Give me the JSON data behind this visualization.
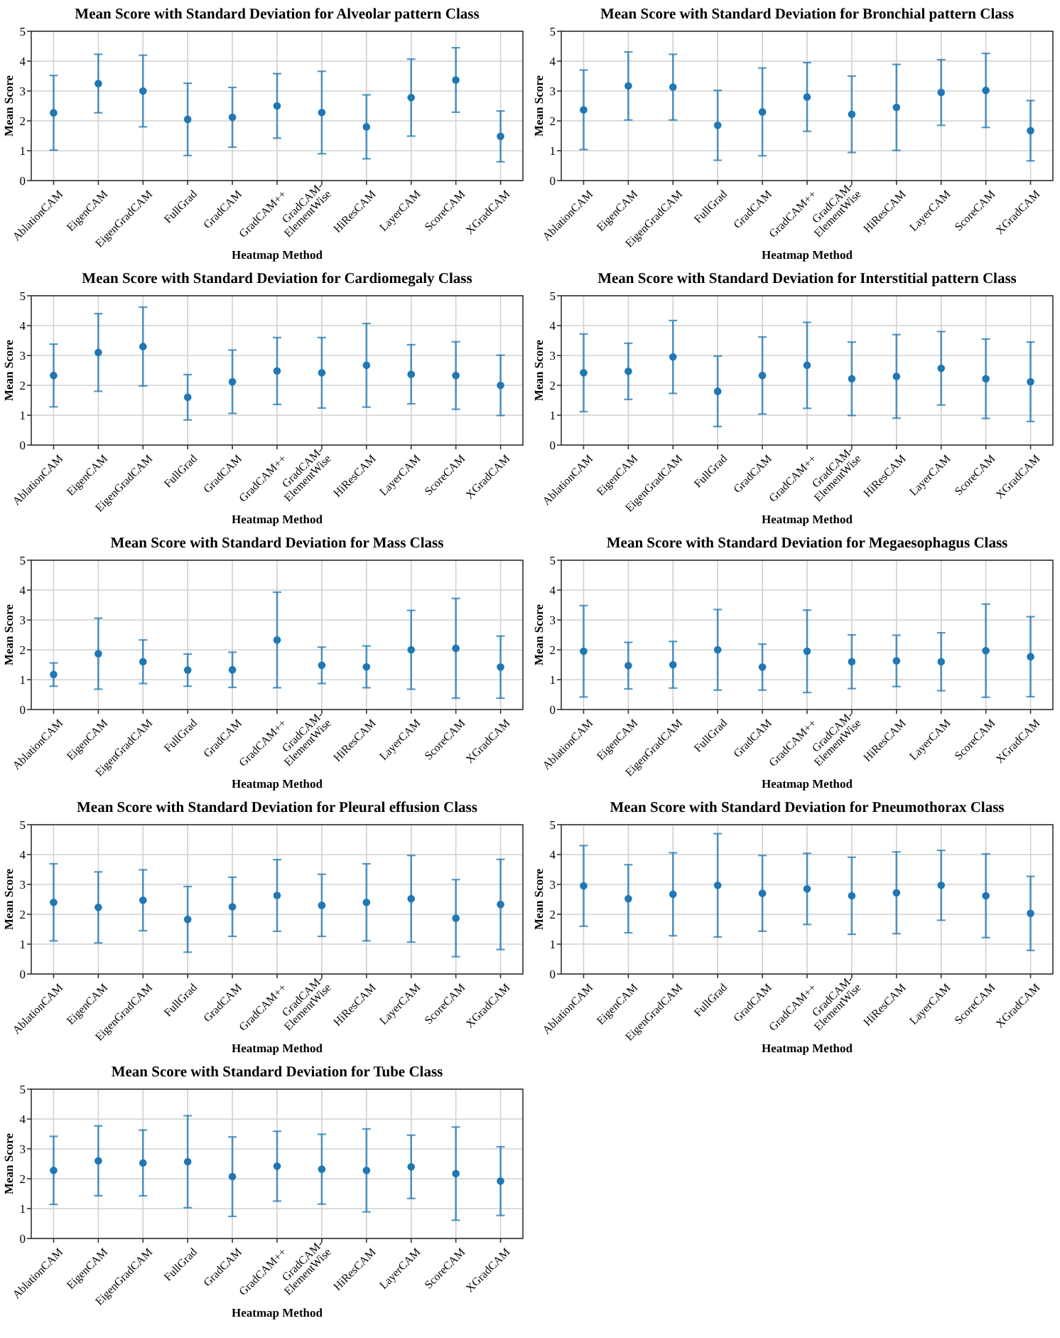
{
  "chart_data": [
    {
      "type": "scatter",
      "title": "Mean Score with Standard Deviation for Alveolar pattern Class",
      "xlabel": "Heatmap Method",
      "ylabel": "Mean Score",
      "categories": [
        "AblationCAM",
        "EigenCAM",
        "EigenGradCAM",
        "FullGrad",
        "GradCAM",
        "GradCAM++",
        "GradCAM-ElementWise",
        "HiResCAM",
        "LayerCAM",
        "ScoreCAM",
        "XGradCAM"
      ],
      "ylim": [
        0,
        5
      ],
      "yticks": [
        0,
        1,
        2,
        3,
        4,
        5
      ],
      "grid": true,
      "marker": "circle",
      "series": [
        {
          "color": "#1f77b4",
          "values": [
            2.27,
            3.25,
            3.0,
            2.05,
            2.12,
            2.5,
            2.28,
            1.8,
            2.78,
            3.37,
            1.48
          ],
          "errors": [
            1.25,
            0.98,
            1.2,
            1.21,
            1.0,
            1.08,
            1.38,
            1.07,
            1.29,
            1.08,
            0.85
          ]
        }
      ]
    },
    {
      "type": "scatter",
      "title": "Mean Score with Standard Deviation for Bronchial pattern Class",
      "xlabel": "Heatmap Method",
      "ylabel": "Mean Score",
      "categories": [
        "AblationCAM",
        "EigenCAM",
        "EigenGradCAM",
        "FullGrad",
        "GradCAM",
        "GradCAM++",
        "GradCAM-ElementWise",
        "HiResCAM",
        "LayerCAM",
        "ScoreCAM",
        "XGradCAM"
      ],
      "ylim": [
        0,
        5
      ],
      "yticks": [
        0,
        1,
        2,
        3,
        4,
        5
      ],
      "grid": true,
      "marker": "circle",
      "series": [
        {
          "color": "#1f77b4",
          "values": [
            2.37,
            3.17,
            3.13,
            1.85,
            2.3,
            2.8,
            2.22,
            2.45,
            2.95,
            3.02,
            1.67
          ],
          "errors": [
            1.33,
            1.14,
            1.1,
            1.17,
            1.47,
            1.15,
            1.28,
            1.44,
            1.1,
            1.24,
            1.01
          ]
        }
      ]
    },
    {
      "type": "scatter",
      "title": "Mean Score with Standard Deviation for Cardiomegaly Class",
      "xlabel": "Heatmap Method",
      "ylabel": "Mean Score",
      "categories": [
        "AblationCAM",
        "EigenCAM",
        "EigenGradCAM",
        "FullGrad",
        "GradCAM",
        "GradCAM++",
        "GradCAM-ElementWise",
        "HiResCAM",
        "LayerCAM",
        "ScoreCAM",
        "XGradCAM"
      ],
      "ylim": [
        0,
        5
      ],
      "yticks": [
        0,
        1,
        2,
        3,
        4,
        5
      ],
      "grid": true,
      "marker": "circle",
      "series": [
        {
          "color": "#1f77b4",
          "values": [
            2.33,
            3.1,
            3.3,
            1.6,
            2.12,
            2.48,
            2.42,
            2.67,
            2.37,
            2.33,
            2.0
          ],
          "errors": [
            1.05,
            1.3,
            1.32,
            0.76,
            1.06,
            1.12,
            1.18,
            1.4,
            0.99,
            1.13,
            1.01
          ]
        }
      ]
    },
    {
      "type": "scatter",
      "title": "Mean Score with Standard Deviation for Interstitial pattern Class",
      "xlabel": "Heatmap Method",
      "ylabel": "Mean Score",
      "categories": [
        "AblationCAM",
        "EigenCAM",
        "EigenGradCAM",
        "FullGrad",
        "GradCAM",
        "GradCAM++",
        "GradCAM-ElementWise",
        "HiResCAM",
        "LayerCAM",
        "ScoreCAM",
        "XGradCAM"
      ],
      "ylim": [
        0,
        5
      ],
      "yticks": [
        0,
        1,
        2,
        3,
        4,
        5
      ],
      "grid": true,
      "marker": "circle",
      "series": [
        {
          "color": "#1f77b4",
          "values": [
            2.42,
            2.47,
            2.95,
            1.8,
            2.33,
            2.67,
            2.22,
            2.3,
            2.57,
            2.22,
            2.12
          ],
          "errors": [
            1.3,
            0.94,
            1.22,
            1.18,
            1.29,
            1.44,
            1.23,
            1.4,
            1.23,
            1.33,
            1.33
          ]
        }
      ]
    },
    {
      "type": "scatter",
      "title": "Mean Score with Standard Deviation for Mass Class",
      "xlabel": "Heatmap Method",
      "ylabel": "Mean Score",
      "categories": [
        "AblationCAM",
        "EigenCAM",
        "EigenGradCAM",
        "FullGrad",
        "GradCAM",
        "GradCAM++",
        "GradCAM-ElementWise",
        "HiResCAM",
        "LayerCAM",
        "ScoreCAM",
        "XGradCAM"
      ],
      "ylim": [
        0,
        5
      ],
      "yticks": [
        0,
        1,
        2,
        3,
        4,
        5
      ],
      "grid": true,
      "marker": "circle",
      "series": [
        {
          "color": "#1f77b4",
          "values": [
            1.17,
            1.87,
            1.6,
            1.32,
            1.33,
            2.33,
            1.48,
            1.43,
            2.0,
            2.05,
            1.42
          ],
          "errors": [
            0.39,
            1.19,
            0.73,
            0.54,
            0.59,
            1.6,
            0.61,
            0.7,
            1.32,
            1.67,
            1.04
          ]
        }
      ]
    },
    {
      "type": "scatter",
      "title": "Mean Score with Standard Deviation for Megaesophagus Class",
      "xlabel": "Heatmap Method",
      "ylabel": "Mean Score",
      "categories": [
        "AblationCAM",
        "EigenCAM",
        "EigenGradCAM",
        "FullGrad",
        "GradCAM",
        "GradCAM++",
        "GradCAM-ElementWise",
        "HiResCAM",
        "LayerCAM",
        "ScoreCAM",
        "XGradCAM"
      ],
      "ylim": [
        0,
        5
      ],
      "yticks": [
        0,
        1,
        2,
        3,
        4,
        5
      ],
      "grid": true,
      "marker": "circle",
      "series": [
        {
          "color": "#1f77b4",
          "values": [
            1.95,
            1.47,
            1.5,
            2.0,
            1.42,
            1.95,
            1.6,
            1.63,
            1.6,
            1.97,
            1.77
          ],
          "errors": [
            1.53,
            0.78,
            0.78,
            1.35,
            0.77,
            1.38,
            0.9,
            0.86,
            0.97,
            1.56,
            1.34
          ]
        }
      ]
    },
    {
      "type": "scatter",
      "title": "Mean Score with Standard Deviation for Pleural effusion Class",
      "xlabel": "Heatmap Method",
      "ylabel": "Mean Score",
      "categories": [
        "AblationCAM",
        "EigenCAM",
        "EigenGradCAM",
        "FullGrad",
        "GradCAM",
        "GradCAM++",
        "GradCAM-ElementWise",
        "HiResCAM",
        "LayerCAM",
        "ScoreCAM",
        "XGradCAM"
      ],
      "ylim": [
        0,
        5
      ],
      "yticks": [
        0,
        1,
        2,
        3,
        4,
        5
      ],
      "grid": true,
      "marker": "circle",
      "series": [
        {
          "color": "#1f77b4",
          "values": [
            2.4,
            2.23,
            2.47,
            1.83,
            2.25,
            2.63,
            2.3,
            2.4,
            2.52,
            1.87,
            2.33
          ],
          "errors": [
            1.29,
            1.19,
            1.02,
            1.1,
            0.99,
            1.2,
            1.04,
            1.29,
            1.45,
            1.29,
            1.51
          ]
        }
      ]
    },
    {
      "type": "scatter",
      "title": "Mean Score with Standard Deviation for Pneumothorax Class",
      "xlabel": "Heatmap Method",
      "ylabel": "Mean Score",
      "categories": [
        "AblationCAM",
        "EigenCAM",
        "EigenGradCAM",
        "FullGrad",
        "GradCAM",
        "GradCAM++",
        "GradCAM-ElementWise",
        "HiResCAM",
        "LayerCAM",
        "ScoreCAM",
        "XGradCAM"
      ],
      "ylim": [
        0,
        5
      ],
      "yticks": [
        0,
        1,
        2,
        3,
        4,
        5
      ],
      "grid": true,
      "marker": "circle",
      "series": [
        {
          "color": "#1f77b4",
          "values": [
            2.95,
            2.52,
            2.67,
            2.97,
            2.7,
            2.85,
            2.62,
            2.72,
            2.97,
            2.62,
            2.03
          ],
          "errors": [
            1.35,
            1.14,
            1.39,
            1.73,
            1.27,
            1.19,
            1.29,
            1.37,
            1.17,
            1.4,
            1.24
          ]
        }
      ]
    },
    {
      "type": "scatter",
      "title": "Mean Score with Standard Deviation for Tube Class",
      "xlabel": "Heatmap Method",
      "ylabel": "Mean Score",
      "categories": [
        "AblationCAM",
        "EigenCAM",
        "EigenGradCAM",
        "FullGrad",
        "GradCAM",
        "GradCAM++",
        "GradCAM-ElementWise",
        "HiResCAM",
        "LayerCAM",
        "ScoreCAM",
        "XGradCAM"
      ],
      "ylim": [
        0,
        5
      ],
      "yticks": [
        0,
        1,
        2,
        3,
        4,
        5
      ],
      "grid": true,
      "marker": "circle",
      "series": [
        {
          "color": "#1f77b4",
          "values": [
            2.28,
            2.6,
            2.53,
            2.57,
            2.07,
            2.42,
            2.32,
            2.28,
            2.4,
            2.17,
            1.92
          ],
          "errors": [
            1.14,
            1.17,
            1.1,
            1.54,
            1.33,
            1.17,
            1.17,
            1.39,
            1.06,
            1.56,
            1.15
          ]
        }
      ]
    }
  ]
}
